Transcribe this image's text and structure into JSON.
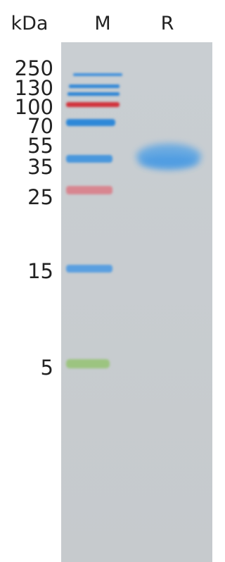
{
  "header": {
    "unit": "kDa",
    "lanes": [
      "M",
      "R"
    ]
  },
  "ladder": {
    "labels": [
      "250",
      "130",
      "100",
      "70",
      "55",
      "35",
      "25",
      "15",
      "5"
    ]
  }
}
